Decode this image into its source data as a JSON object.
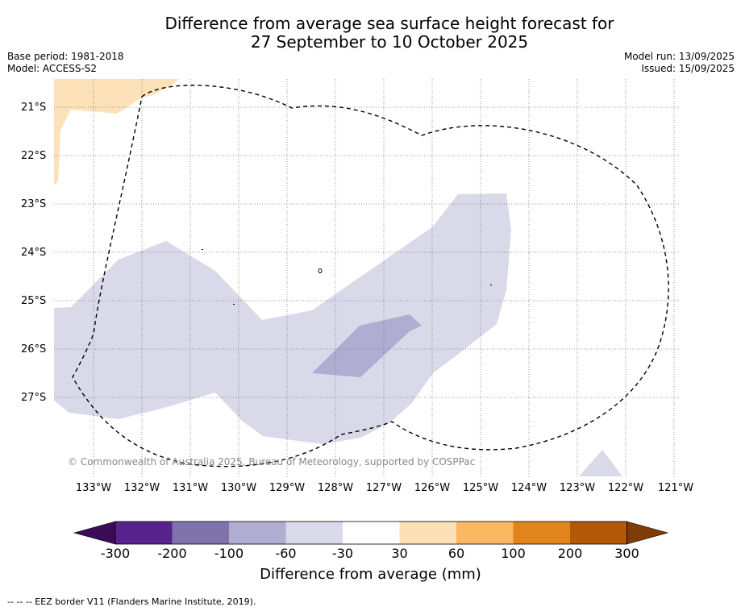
{
  "header": {
    "title_line1": "Difference from average sea surface height forecast for",
    "title_line2": "27 September to 10 October 2025",
    "base_period": "Base period: 1981-2018",
    "model": "Model: ACCESS-S2",
    "model_run": "Model run: 13/09/2025",
    "issued": "Issued: 15/09/2025"
  },
  "map": {
    "latitudes": [
      "21°S",
      "22°S",
      "23°S",
      "24°S",
      "25°S",
      "26°S",
      "27°S"
    ],
    "longitudes": [
      "133°W",
      "132°W",
      "131°W",
      "130°W",
      "129°W",
      "128°W",
      "127°W",
      "126°W",
      "125°W",
      "124°W",
      "123°W",
      "122°W",
      "121°W"
    ],
    "copyright": "© Commonwealth of Australia 2025, Bureau of Meteorology, supported by COSPPac",
    "colors": {
      "light_purple": "#d9d9ea",
      "mid_purple": "#b1acd2",
      "light_orange": "#fde1b9",
      "eez_border": "#000000"
    }
  },
  "colorbar": {
    "ticks": [
      "-300",
      "-200",
      "-100",
      "-60",
      "-30",
      "30",
      "60",
      "100",
      "200",
      "300"
    ],
    "colors": [
      "#58238e",
      "#8073ac",
      "#b1acd2",
      "#d9d9ea",
      "#ffffff",
      "#fee0b6",
      "#fcb762",
      "#e1841a",
      "#b35806"
    ],
    "under_color": "#3b0b58",
    "over_color": "#7f3b08",
    "label": "Difference from average (mm)"
  },
  "footer": {
    "note": "--  --  -- EEZ border V11 (Flanders Marine Institute, 2019)."
  }
}
